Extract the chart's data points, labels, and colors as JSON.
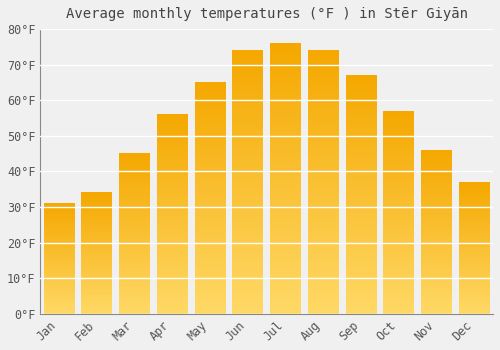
{
  "months": [
    "Jan",
    "Feb",
    "Mar",
    "Apr",
    "May",
    "Jun",
    "Jul",
    "Aug",
    "Sep",
    "Oct",
    "Nov",
    "Dec"
  ],
  "values": [
    31,
    34,
    45,
    56,
    65,
    74,
    76,
    74,
    67,
    57,
    46,
    37
  ],
  "bar_color_dark": "#F5A800",
  "bar_color_light": "#FFD966",
  "title": "Average monthly temperatures (°F ) in Stēr Giyān",
  "ylim": [
    0,
    80
  ],
  "yticks": [
    0,
    10,
    20,
    30,
    40,
    50,
    60,
    70,
    80
  ],
  "ytick_labels": [
    "0°F",
    "10°F",
    "20°F",
    "30°F",
    "40°F",
    "50°F",
    "60°F",
    "70°F",
    "80°F"
  ],
  "background_color": "#f0f0f0",
  "grid_color": "#ffffff",
  "title_fontsize": 10,
  "tick_fontsize": 8.5,
  "bar_width": 0.82
}
